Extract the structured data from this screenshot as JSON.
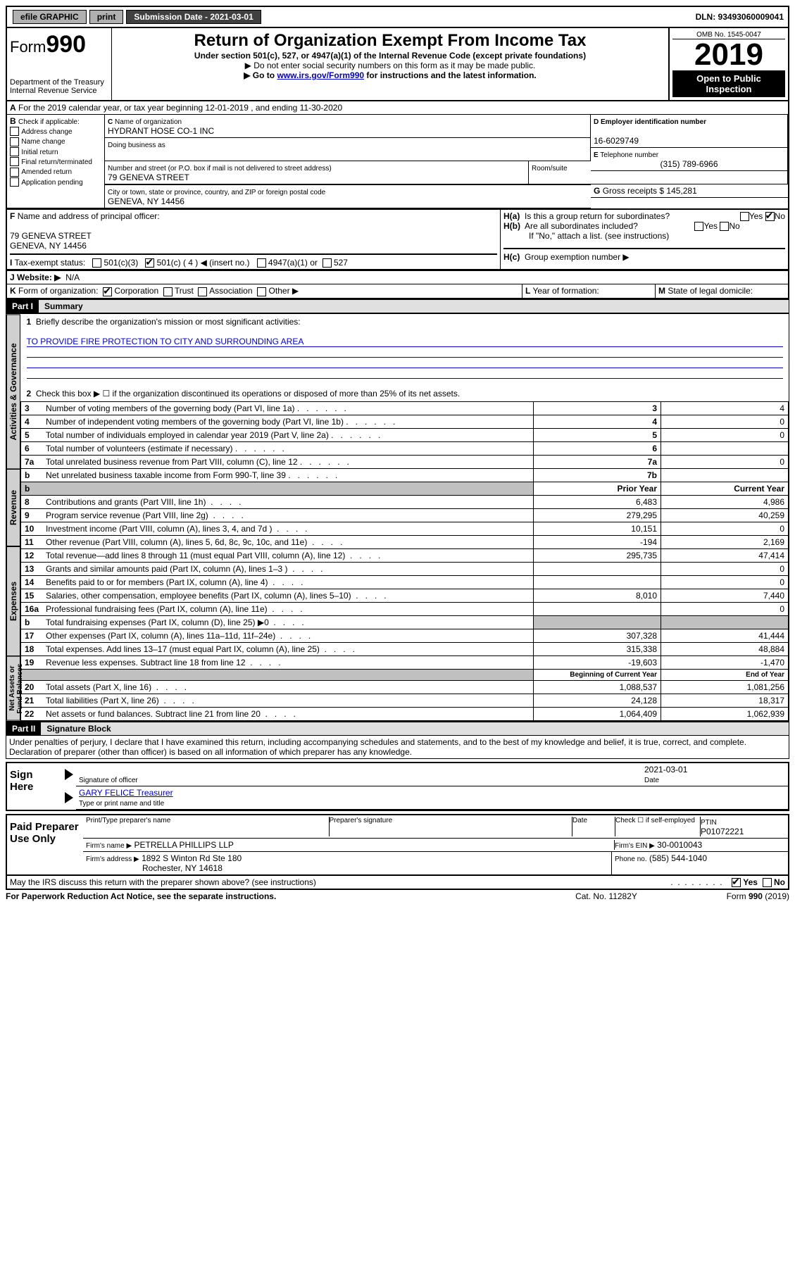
{
  "top": {
    "efile": "efile GRAPHIC",
    "print": "print",
    "subdate_lbl": "Submission Date - 2021-03-01",
    "dln": "DLN: 93493060009041"
  },
  "hdr": {
    "form": "Form",
    "num": "990",
    "dept": "Department of the Treasury\nInternal Revenue Service",
    "title": "Return of Organization Exempt From Income Tax",
    "sub1": "Under section 501(c), 527, or 4947(a)(1) of the Internal Revenue Code (except private foundations)",
    "sub2": "▶ Do not enter social security numbers on this form as it may be made public.",
    "sub3": "▶ Go to www.irs.gov/Form990 for instructions and the latest information.",
    "omb": "OMB No. 1545-0047",
    "year": "2019",
    "open": "Open to Public Inspection"
  },
  "A": {
    "line": "For the 2019 calendar year, or tax year beginning 12-01-2019    , and ending 11-30-2020"
  },
  "B": {
    "hdr": "Check if applicable:",
    "opts": [
      "Address change",
      "Name change",
      "Initial return",
      "Final return/terminated",
      "Amended return",
      "Application pending"
    ]
  },
  "C": {
    "name_lbl": "Name of organization",
    "name": "HYDRANT HOSE CO-1 INC",
    "dba_lbl": "Doing business as",
    "addr_lbl": "Number and street (or P.O. box if mail is not delivered to street address)",
    "room_lbl": "Room/suite",
    "addr": "79 GENEVA STREET",
    "city_lbl": "City or town, state or province, country, and ZIP or foreign postal code",
    "city": "GENEVA, NY  14456"
  },
  "D": {
    "lbl": "Employer identification number",
    "val": "16-6029749"
  },
  "E": {
    "lbl": "Telephone number",
    "val": "(315) 789-6966"
  },
  "G": {
    "lbl": "Gross receipts $",
    "val": "145,281"
  },
  "F": {
    "lbl": "Name and address of principal officer:",
    "addr1": "79 GENEVA STREET",
    "addr2": "GENEVA, NY  14456"
  },
  "H": {
    "a": "Is this a group return for subordinates?",
    "b": "Are all subordinates included?",
    "b2": "If \"No,\" attach a list. (see instructions)",
    "c": "Group exemption number ▶",
    "yes": "Yes",
    "no": "No"
  },
  "I": {
    "lbl": "Tax-exempt status:",
    "o1": "501(c)(3)",
    "o2": "501(c) ( 4 ) ◀ (insert no.)",
    "o3": "4947(a)(1) or",
    "o4": "527"
  },
  "J": {
    "lbl": "Website: ▶",
    "val": "N/A"
  },
  "K": {
    "lbl": "Form of organization:",
    "o": [
      "Corporation",
      "Trust",
      "Association",
      "Other ▶"
    ]
  },
  "L": {
    "lbl": "Year of formation:"
  },
  "M": {
    "lbl": "State of legal domicile:"
  },
  "p1": {
    "lbl": "Part I",
    "title": "Summary"
  },
  "p2": {
    "lbl": "Part II",
    "title": "Signature Block"
  },
  "s1": {
    "l1": "Briefly describe the organization's mission or most significant activities:",
    "l1v": "TO PROVIDE FIRE PROTECTION TO CITY AND SURROUNDING AREA",
    "l2": "Check this box ▶ ☐ if the organization discontinued its operations or disposed of more than 25% of its net assets.",
    "rows": [
      {
        "n": "3",
        "t": "Number of voting members of the governing body (Part VI, line 1a)",
        "c": "3",
        "v": "4"
      },
      {
        "n": "4",
        "t": "Number of independent voting members of the governing body (Part VI, line 1b)",
        "c": "4",
        "v": "0"
      },
      {
        "n": "5",
        "t": "Total number of individuals employed in calendar year 2019 (Part V, line 2a)",
        "c": "5",
        "v": "0"
      },
      {
        "n": "6",
        "t": "Total number of volunteers (estimate if necessary)",
        "c": "6",
        "v": ""
      },
      {
        "n": "7a",
        "t": "Total unrelated business revenue from Part VIII, column (C), line 12",
        "c": "7a",
        "v": "0"
      },
      {
        "n": "b",
        "t": "Net unrelated business taxable income from Form 990-T, line 39",
        "c": "7b",
        "v": ""
      }
    ],
    "prior": "Prior Year",
    "curr": "Current Year",
    "rev": [
      {
        "n": "8",
        "t": "Contributions and grants (Part VIII, line 1h)",
        "p": "6,483",
        "c": "4,986"
      },
      {
        "n": "9",
        "t": "Program service revenue (Part VIII, line 2g)",
        "p": "279,295",
        "c": "40,259"
      },
      {
        "n": "10",
        "t": "Investment income (Part VIII, column (A), lines 3, 4, and 7d )",
        "p": "10,151",
        "c": "0"
      },
      {
        "n": "11",
        "t": "Other revenue (Part VIII, column (A), lines 5, 6d, 8c, 9c, 10c, and 11e)",
        "p": "-194",
        "c": "2,169"
      },
      {
        "n": "12",
        "t": "Total revenue—add lines 8 through 11 (must equal Part VIII, column (A), line 12)",
        "p": "295,735",
        "c": "47,414"
      }
    ],
    "exp": [
      {
        "n": "13",
        "t": "Grants and similar amounts paid (Part IX, column (A), lines 1–3 )",
        "p": "",
        "c": "0"
      },
      {
        "n": "14",
        "t": "Benefits paid to or for members (Part IX, column (A), line 4)",
        "p": "",
        "c": "0"
      },
      {
        "n": "15",
        "t": "Salaries, other compensation, employee benefits (Part IX, column (A), lines 5–10)",
        "p": "8,010",
        "c": "7,440"
      },
      {
        "n": "16a",
        "t": "Professional fundraising fees (Part IX, column (A), line 11e)",
        "p": "",
        "c": "0"
      },
      {
        "n": "b",
        "t": "Total fundraising expenses (Part IX, column (D), line 25) ▶0",
        "p": "GRAY",
        "c": "GRAY"
      },
      {
        "n": "17",
        "t": "Other expenses (Part IX, column (A), lines 11a–11d, 11f–24e)",
        "p": "307,328",
        "c": "41,444"
      },
      {
        "n": "18",
        "t": "Total expenses. Add lines 13–17 (must equal Part IX, column (A), line 25)",
        "p": "315,338",
        "c": "48,884"
      },
      {
        "n": "19",
        "t": "Revenue less expenses. Subtract line 18 from line 12",
        "p": "-19,603",
        "c": "-1,470"
      }
    ],
    "boy": "Beginning of Current Year",
    "eoy": "End of Year",
    "na": [
      {
        "n": "20",
        "t": "Total assets (Part X, line 16)",
        "p": "1,088,537",
        "c": "1,081,256"
      },
      {
        "n": "21",
        "t": "Total liabilities (Part X, line 26)",
        "p": "24,128",
        "c": "18,317"
      },
      {
        "n": "22",
        "t": "Net assets or fund balances. Subtract line 21 from line 20",
        "p": "1,064,409",
        "c": "1,062,939"
      }
    ],
    "tabs": [
      "Activities & Governance",
      "Revenue",
      "Expenses",
      "Net Assets or Fund Balances"
    ]
  },
  "perjury": "Under penalties of perjury, I declare that I have examined this return, including accompanying schedules and statements, and to the best of my knowledge and belief, it is true, correct, and complete. Declaration of preparer (other than officer) is based on all information of which preparer has any knowledge.",
  "sign": {
    "here": "Sign Here",
    "sig": "Signature of officer",
    "date": "Date",
    "datev": "2021-03-01",
    "name": "GARY FELICE  Treasurer",
    "name_lbl": "Type or print name and title"
  },
  "paid": {
    "title": "Paid Preparer Use Only",
    "h": [
      "Print/Type preparer's name",
      "Preparer's signature",
      "Date"
    ],
    "selfemp": "Check ☐ if self-employed",
    "ptin_lbl": "PTIN",
    "ptin": "P01072221",
    "firm_lbl": "Firm's name   ▶",
    "firm": "PETRELLA PHILLIPS LLP",
    "ein_lbl": "Firm's EIN ▶",
    "ein": "30-0010043",
    "addr_lbl": "Firm's address ▶",
    "addr1": "1892 S Winton Rd Ste 180",
    "addr2": "Rochester, NY  14618",
    "phone_lbl": "Phone no.",
    "phone": "(585) 544-1040"
  },
  "foot": {
    "q": "May the IRS discuss this return with the preparer shown above? (see instructions)",
    "pra": "For Paperwork Reduction Act Notice, see the separate instructions.",
    "cat": "Cat. No. 11282Y",
    "form": "Form 990 (2019)"
  }
}
